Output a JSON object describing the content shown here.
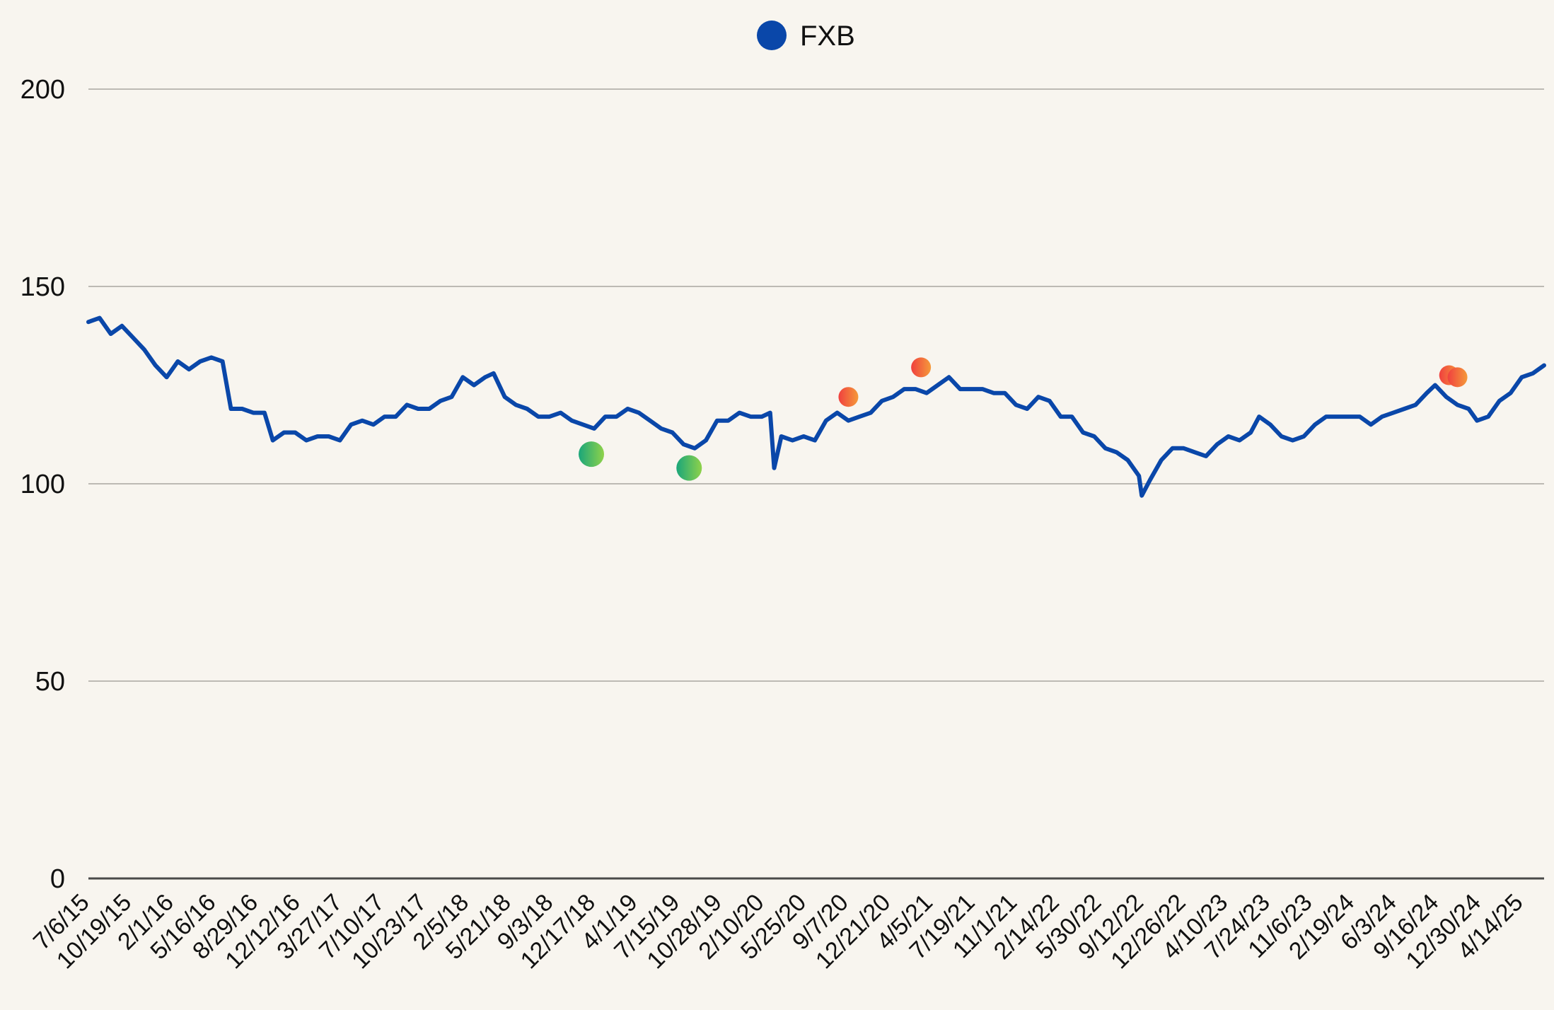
{
  "chart_data": {
    "type": "line",
    "title": "",
    "xlabel": "",
    "ylabel": "",
    "ylim": [
      0,
      200
    ],
    "yticks": [
      0,
      50,
      100,
      150,
      200
    ],
    "grid": true,
    "legend_position": "top-center",
    "colors": {
      "background": "#f8f5ef",
      "line": "#0a47a9",
      "grid": "#bdbab4",
      "marker_buy_start": "#1aa67a",
      "marker_buy_end": "#8fd24a",
      "marker_sell_start": "#f0403f",
      "marker_sell_end": "#f59a3a"
    },
    "x_start": "2015-07-06",
    "x_end": "2025-06-30",
    "xtick_labels": [
      "7/6/15",
      "10/19/15",
      "2/1/16",
      "5/16/16",
      "8/29/16",
      "12/12/16",
      "3/27/17",
      "7/10/17",
      "10/23/17",
      "2/5/18",
      "5/21/18",
      "9/3/18",
      "12/17/18",
      "4/1/19",
      "7/15/19",
      "10/28/19",
      "2/10/20",
      "5/25/20",
      "9/7/20",
      "12/21/20",
      "4/5/21",
      "7/19/21",
      "11/1/21",
      "2/14/22",
      "5/30/22",
      "9/12/22",
      "12/26/22",
      "4/10/23",
      "7/24/23",
      "11/6/23",
      "2/19/24",
      "6/3/24",
      "9/16/24",
      "12/30/24",
      "4/14/25"
    ],
    "series": [
      {
        "name": "FXB",
        "color": "#0a47a9",
        "points": [
          [
            "2015-07-06",
            141
          ],
          [
            "2015-08-03",
            142
          ],
          [
            "2015-08-31",
            138
          ],
          [
            "2015-09-28",
            140
          ],
          [
            "2015-10-26",
            137
          ],
          [
            "2015-11-23",
            134
          ],
          [
            "2015-12-21",
            130
          ],
          [
            "2016-01-18",
            127
          ],
          [
            "2016-02-15",
            131
          ],
          [
            "2016-03-14",
            129
          ],
          [
            "2016-04-11",
            131
          ],
          [
            "2016-05-09",
            132
          ],
          [
            "2016-06-06",
            131
          ],
          [
            "2016-06-27",
            119
          ],
          [
            "2016-07-25",
            119
          ],
          [
            "2016-08-22",
            118
          ],
          [
            "2016-09-19",
            118
          ],
          [
            "2016-10-10",
            111
          ],
          [
            "2016-11-07",
            113
          ],
          [
            "2016-12-05",
            113
          ],
          [
            "2017-01-02",
            111
          ],
          [
            "2017-01-30",
            112
          ],
          [
            "2017-02-27",
            112
          ],
          [
            "2017-03-27",
            111
          ],
          [
            "2017-04-24",
            115
          ],
          [
            "2017-05-22",
            116
          ],
          [
            "2017-06-19",
            115
          ],
          [
            "2017-07-17",
            117
          ],
          [
            "2017-08-14",
            117
          ],
          [
            "2017-09-11",
            120
          ],
          [
            "2017-10-09",
            119
          ],
          [
            "2017-11-06",
            119
          ],
          [
            "2017-12-04",
            121
          ],
          [
            "2018-01-01",
            122
          ],
          [
            "2018-01-29",
            127
          ],
          [
            "2018-02-26",
            125
          ],
          [
            "2018-03-26",
            127
          ],
          [
            "2018-04-16",
            128
          ],
          [
            "2018-05-14",
            122
          ],
          [
            "2018-06-11",
            120
          ],
          [
            "2018-07-09",
            119
          ],
          [
            "2018-08-06",
            117
          ],
          [
            "2018-09-03",
            117
          ],
          [
            "2018-10-01",
            118
          ],
          [
            "2018-10-29",
            116
          ],
          [
            "2018-11-26",
            115
          ],
          [
            "2018-12-24",
            114
          ],
          [
            "2019-01-21",
            117
          ],
          [
            "2019-02-18",
            117
          ],
          [
            "2019-03-18",
            119
          ],
          [
            "2019-04-15",
            118
          ],
          [
            "2019-05-13",
            116
          ],
          [
            "2019-06-10",
            114
          ],
          [
            "2019-07-08",
            113
          ],
          [
            "2019-08-05",
            110
          ],
          [
            "2019-09-02",
            109
          ],
          [
            "2019-09-30",
            111
          ],
          [
            "2019-10-28",
            116
          ],
          [
            "2019-11-25",
            116
          ],
          [
            "2019-12-23",
            118
          ],
          [
            "2020-01-20",
            117
          ],
          [
            "2020-02-17",
            117
          ],
          [
            "2020-03-09",
            118
          ],
          [
            "2020-03-19",
            104
          ],
          [
            "2020-04-06",
            112
          ],
          [
            "2020-05-04",
            111
          ],
          [
            "2020-06-01",
            112
          ],
          [
            "2020-06-29",
            111
          ],
          [
            "2020-07-27",
            116
          ],
          [
            "2020-08-24",
            118
          ],
          [
            "2020-09-21",
            116
          ],
          [
            "2020-10-19",
            117
          ],
          [
            "2020-11-16",
            118
          ],
          [
            "2020-12-14",
            121
          ],
          [
            "2021-01-11",
            122
          ],
          [
            "2021-02-08",
            124
          ],
          [
            "2021-03-08",
            124
          ],
          [
            "2021-04-05",
            123
          ],
          [
            "2021-05-03",
            125
          ],
          [
            "2021-05-31",
            127
          ],
          [
            "2021-06-28",
            124
          ],
          [
            "2021-07-26",
            124
          ],
          [
            "2021-08-23",
            124
          ],
          [
            "2021-09-20",
            123
          ],
          [
            "2021-10-18",
            123
          ],
          [
            "2021-11-15",
            120
          ],
          [
            "2021-12-13",
            119
          ],
          [
            "2022-01-10",
            122
          ],
          [
            "2022-02-07",
            121
          ],
          [
            "2022-03-07",
            117
          ],
          [
            "2022-04-04",
            117
          ],
          [
            "2022-05-02",
            113
          ],
          [
            "2022-05-30",
            112
          ],
          [
            "2022-06-27",
            109
          ],
          [
            "2022-07-25",
            108
          ],
          [
            "2022-08-22",
            106
          ],
          [
            "2022-09-19",
            102
          ],
          [
            "2022-09-26",
            97
          ],
          [
            "2022-10-17",
            101
          ],
          [
            "2022-11-14",
            106
          ],
          [
            "2022-12-12",
            109
          ],
          [
            "2023-01-09",
            109
          ],
          [
            "2023-02-06",
            108
          ],
          [
            "2023-03-06",
            107
          ],
          [
            "2023-04-03",
            110
          ],
          [
            "2023-05-01",
            112
          ],
          [
            "2023-05-29",
            111
          ],
          [
            "2023-06-26",
            113
          ],
          [
            "2023-07-17",
            117
          ],
          [
            "2023-08-14",
            115
          ],
          [
            "2023-09-11",
            112
          ],
          [
            "2023-10-09",
            111
          ],
          [
            "2023-11-06",
            112
          ],
          [
            "2023-12-04",
            115
          ],
          [
            "2024-01-01",
            117
          ],
          [
            "2024-01-29",
            117
          ],
          [
            "2024-02-26",
            117
          ],
          [
            "2024-03-25",
            117
          ],
          [
            "2024-04-22",
            115
          ],
          [
            "2024-05-20",
            117
          ],
          [
            "2024-06-17",
            118
          ],
          [
            "2024-07-15",
            119
          ],
          [
            "2024-08-12",
            120
          ],
          [
            "2024-09-09",
            123
          ],
          [
            "2024-09-30",
            125
          ],
          [
            "2024-10-28",
            122
          ],
          [
            "2024-11-25",
            120
          ],
          [
            "2024-12-23",
            119
          ],
          [
            "2025-01-13",
            116
          ],
          [
            "2025-02-10",
            117
          ],
          [
            "2025-03-10",
            121
          ],
          [
            "2025-04-07",
            123
          ],
          [
            "2025-05-05",
            127
          ],
          [
            "2025-06-02",
            128
          ],
          [
            "2025-06-30",
            130
          ]
        ]
      }
    ],
    "markers": [
      {
        "date": "2018-12-17",
        "value": 107.5,
        "kind": "buy"
      },
      {
        "date": "2019-08-19",
        "value": 104.0,
        "kind": "buy"
      },
      {
        "date": "2020-09-21",
        "value": 122.0,
        "kind": "sell"
      },
      {
        "date": "2021-03-22",
        "value": 129.5,
        "kind": "sell"
      },
      {
        "date": "2024-11-04",
        "value": 127.5,
        "kind": "sell"
      },
      {
        "date": "2024-11-25",
        "value": 127.0,
        "kind": "sell"
      }
    ]
  }
}
